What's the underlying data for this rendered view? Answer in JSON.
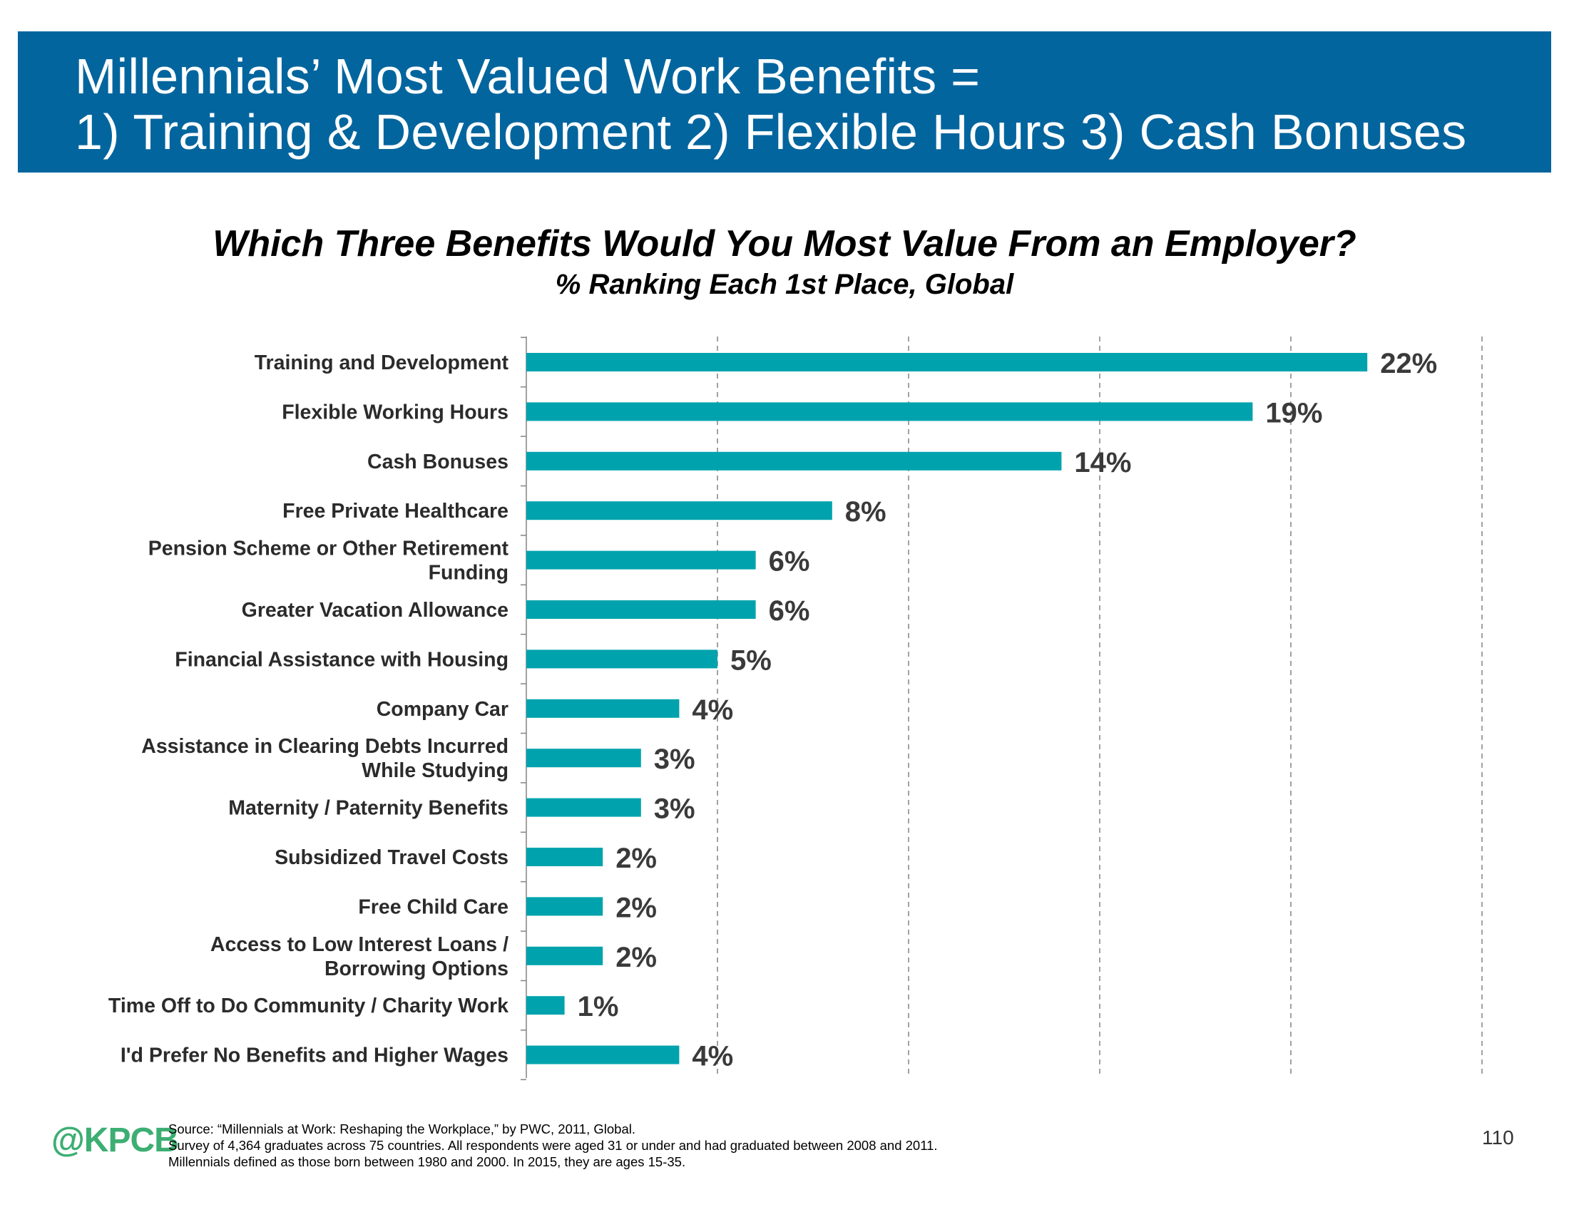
{
  "header": {
    "line1": "Millennials’ Most Valued Work Benefits =",
    "line2": "1) Training & Development  2) Flexible Hours  3) Cash Bonuses",
    "background_color": "#03659E"
  },
  "chart_data": {
    "type": "bar",
    "orientation": "horizontal",
    "title": "Which Three Benefits Would You Most Value From an Employer?",
    "subtitle": "% Ranking Each 1st Place, Global",
    "categories": [
      "Training and Development",
      "Flexible Working Hours",
      "Cash Bonuses",
      "Free Private Healthcare",
      "Pension Scheme or Other Retirement Funding",
      "Greater Vacation Allowance",
      "Financial Assistance with Housing",
      "Company Car",
      "Assistance in Clearing Debts Incurred While Studying",
      "Maternity / Paternity Benefits",
      "Subsidized Travel Costs",
      "Free Child Care",
      "Access to Low Interest Loans / Borrowing Options",
      "Time Off to Do Community / Charity Work",
      "I'd Prefer No Benefits and Higher Wages"
    ],
    "category_label_lines": [
      [
        "Training and Development"
      ],
      [
        "Flexible Working Hours"
      ],
      [
        "Cash Bonuses"
      ],
      [
        "Free Private Healthcare"
      ],
      [
        "Pension Scheme or Other Retirement",
        "Funding"
      ],
      [
        "Greater Vacation Allowance"
      ],
      [
        "Financial Assistance with Housing"
      ],
      [
        "Company Car"
      ],
      [
        "Assistance in Clearing Debts Incurred",
        "While Studying"
      ],
      [
        "Maternity / Paternity Benefits"
      ],
      [
        "Subsidized Travel Costs"
      ],
      [
        "Free Child Care"
      ],
      [
        "Access to Low Interest Loans /",
        "Borrowing Options"
      ],
      [
        "Time Off to Do Community / Charity Work"
      ],
      [
        "I'd Prefer No Benefits and Higher Wages"
      ]
    ],
    "values": [
      22,
      19,
      14,
      8,
      6,
      6,
      5,
      4,
      3,
      3,
      2,
      2,
      2,
      1,
      4
    ],
    "data_labels": [
      "22%",
      "19%",
      "14%",
      "8%",
      "6%",
      "6%",
      "5%",
      "4%",
      "3%",
      "3%",
      "2%",
      "2%",
      "2%",
      "1%",
      "4%"
    ],
    "xlim": [
      0,
      25
    ],
    "gridline_values": [
      5,
      10,
      15,
      20,
      25
    ],
    "grid": "vertical dashed",
    "bar_color": "#00A3AD",
    "xlabel": "",
    "ylabel": ""
  },
  "footer": {
    "logo": "@KPCB",
    "logo_color": "#3DAE73",
    "source_lines": [
      "Source: “Millennials at Work: Reshaping the Workplace,” by PWC, 2011, Global.",
      "Survey of 4,364 graduates across 75 countries. All respondents were aged 31 or under and had graduated between 2008 and 2011.",
      "Millennials defined as those born between 1980 and 2000. In 2015, they are ages 15-35."
    ],
    "page_number": "110"
  }
}
